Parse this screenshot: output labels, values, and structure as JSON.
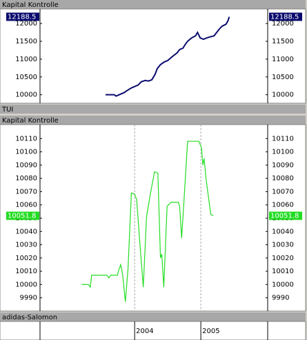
{
  "panel_bars": [
    "TUI",
    "adidas-Salomon"
  ],
  "chart_data": [
    {
      "type": "line",
      "title": "Kapital Kontrolle",
      "x": [
        2003.56,
        2003.69,
        2003.72,
        2003.84,
        2003.9,
        2003.95,
        2004.0,
        2004.05,
        2004.1,
        2004.16,
        2004.21,
        2004.26,
        2004.31,
        2004.34,
        2004.39,
        2004.45,
        2004.5,
        2004.55,
        2004.6,
        2004.64,
        2004.68,
        2004.73,
        2004.76,
        2004.8,
        2004.86,
        2004.92,
        2004.95,
        2004.99,
        2005.04,
        2005.09,
        2005.15,
        2005.2,
        2005.24,
        2005.28,
        2005.32,
        2005.38,
        2005.41,
        2005.43
      ],
      "series": [
        {
          "color": "#0a0a6e",
          "values": [
            10000,
            10000,
            9962,
            10058,
            10135,
            10190,
            10230,
            10270,
            10365,
            10400,
            10385,
            10420,
            10577,
            10730,
            10846,
            10923,
            10960,
            11040,
            11115,
            11173,
            11270,
            11307,
            11400,
            11500,
            11596,
            11654,
            11750,
            11596,
            11558,
            11596,
            11630,
            11654,
            11750,
            11846,
            11923,
            11980,
            12077,
            12188.5
          ]
        }
      ],
      "xlim": [
        2002.57,
        2006.01
      ],
      "ylim": [
        9800,
        12370
      ],
      "yticks": [
        10000,
        10500,
        11000,
        11500,
        12000
      ],
      "grid": false
    },
    {
      "type": "line",
      "title": "Kapital Kontrolle",
      "x": [
        2003.2,
        2003.3,
        2003.33,
        2003.35,
        2003.58,
        2003.61,
        2003.64,
        2003.74,
        2003.76,
        2003.79,
        2003.82,
        2003.86,
        2003.9,
        2003.95,
        2004.0,
        2004.03,
        2004.08,
        2004.13,
        2004.18,
        2004.24,
        2004.3,
        2004.35,
        2004.39,
        2004.41,
        2004.44,
        2004.49,
        2004.55,
        2004.66,
        2004.68,
        2004.71,
        2004.74,
        2004.8,
        2004.97,
        2005.01,
        2005.03,
        2005.05,
        2005.08,
        2005.15,
        2005.19
      ],
      "series": [
        {
          "color": "#22dd22",
          "values": [
            10000,
            10000,
            9998,
            10007,
            10007,
            10005,
            10007,
            10007,
            10011,
            10015,
            10007,
            9987,
            10012,
            10069,
            10068,
            10064,
            10030,
            9998,
            10051,
            10069,
            10085,
            10084,
            10020,
            10023,
            9998,
            10059,
            10062,
            10062,
            10059,
            10035,
            10059,
            10108,
            10108,
            10103,
            10090,
            10095,
            10079,
            10053,
            10051.8
          ]
        }
      ],
      "xlim": [
        2002.57,
        2006.01
      ],
      "ylim": [
        9981,
        10119
      ],
      "yticks": [
        9990,
        10000,
        10010,
        10020,
        10030,
        10040,
        10050,
        10060,
        10070,
        10080,
        10090,
        10100,
        10110
      ],
      "xticks": [
        2004,
        2005
      ],
      "grid": true
    }
  ]
}
